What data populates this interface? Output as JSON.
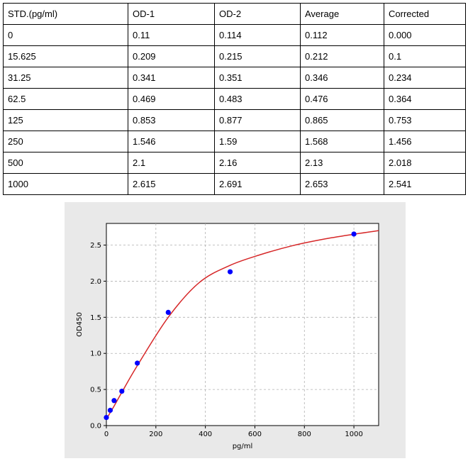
{
  "table": {
    "header": [
      "STD.(pg/ml)",
      "OD-1",
      "OD-2",
      "Average",
      "Corrected"
    ],
    "rows": [
      [
        "0",
        "0.11",
        "0.114",
        "0.112",
        "0.000"
      ],
      [
        "15.625",
        "0.209",
        "0.215",
        "0.212",
        "0.1"
      ],
      [
        "31.25",
        "0.341",
        "0.351",
        "0.346",
        "0.234"
      ],
      [
        "62.5",
        "0.469",
        "0.483",
        "0.476",
        "0.364"
      ],
      [
        "125",
        "0.853",
        "0.877",
        "0.865",
        "0.753"
      ],
      [
        "250",
        "1.546",
        "1.59",
        "1.568",
        "1.456"
      ],
      [
        "500",
        "2.1",
        "2.16",
        "2.13",
        "2.018"
      ],
      [
        "1000",
        "2.615",
        "2.691",
        "2.653",
        "2.541"
      ]
    ]
  },
  "chart_data": {
    "type": "scatter",
    "title": "",
    "xlabel": "pg/ml",
    "ylabel": "OD450",
    "xlim": [
      0,
      1100
    ],
    "ylim": [
      0,
      2.8
    ],
    "x_ticks": [
      0,
      200,
      400,
      600,
      800,
      1000
    ],
    "y_ticks": [
      0.0,
      0.5,
      1.0,
      1.5,
      2.0,
      2.5
    ],
    "x_tick_labels": [
      "0",
      "200",
      "400",
      "600",
      "800",
      "1000"
    ],
    "y_tick_labels": [
      "0.0",
      "0.5",
      "1.0",
      "1.5",
      "2.0",
      "2.5"
    ],
    "grid": true,
    "points": {
      "x": [
        0,
        15.625,
        31.25,
        62.5,
        125,
        250,
        500,
        1000
      ],
      "y": [
        0.112,
        0.212,
        0.346,
        0.476,
        0.865,
        1.568,
        2.13,
        2.653
      ],
      "color": "#0000ff"
    },
    "fit_curve": {
      "x": [
        0,
        15.625,
        31.25,
        62.5,
        125,
        250,
        375,
        500,
        625,
        750,
        875,
        1000,
        1100
      ],
      "y": [
        0.09,
        0.18,
        0.27,
        0.46,
        0.83,
        1.5,
        1.98,
        2.22,
        2.37,
        2.49,
        2.58,
        2.65,
        2.7
      ],
      "color": "#d62728"
    },
    "panel_color": "#e9e9e9",
    "plot_bg": "#ffffff",
    "grid_color": "#b0b0b0"
  }
}
